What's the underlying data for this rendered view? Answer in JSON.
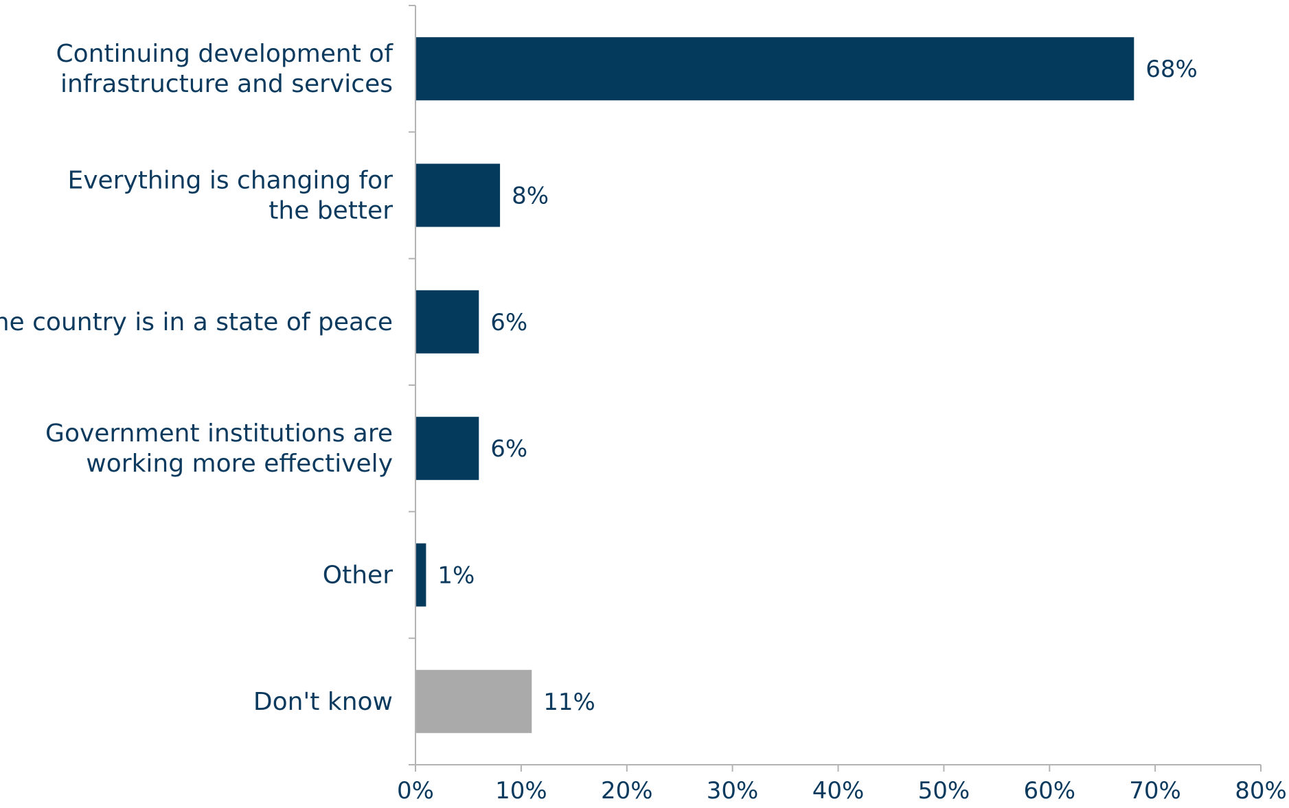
{
  "colors": {
    "primary": "#043a5c",
    "dont_know": "#aaaaab",
    "axis": "#b3b3b3",
    "text": "#0b3a5e"
  },
  "chart_data": {
    "type": "bar",
    "orientation": "horizontal",
    "categories": [
      [
        "Continuing development of",
        "infrastructure and services"
      ],
      [
        "Everything is changing for",
        "the better"
      ],
      [
        "The country is in a state of peace"
      ],
      [
        "Government institutions are",
        "working more effectively"
      ],
      [
        "Other"
      ],
      [
        "Don't know"
      ]
    ],
    "values": [
      68,
      8,
      6,
      6,
      1,
      11
    ],
    "value_labels": [
      "68%",
      "8%",
      "6%",
      "6%",
      "1%",
      "11%"
    ],
    "bar_colors": [
      "primary",
      "primary",
      "primary",
      "primary",
      "primary",
      "dont_know"
    ],
    "title": "",
    "xlabel": "",
    "ylabel": "",
    "xlim": [
      0,
      80
    ],
    "xticks": [
      0,
      10,
      20,
      30,
      40,
      50,
      60,
      70,
      80
    ],
    "xtick_labels": [
      "0%",
      "10%",
      "20%",
      "30%",
      "40%",
      "50%",
      "60%",
      "70%",
      "80%"
    ],
    "grid": false,
    "legend": "none"
  }
}
